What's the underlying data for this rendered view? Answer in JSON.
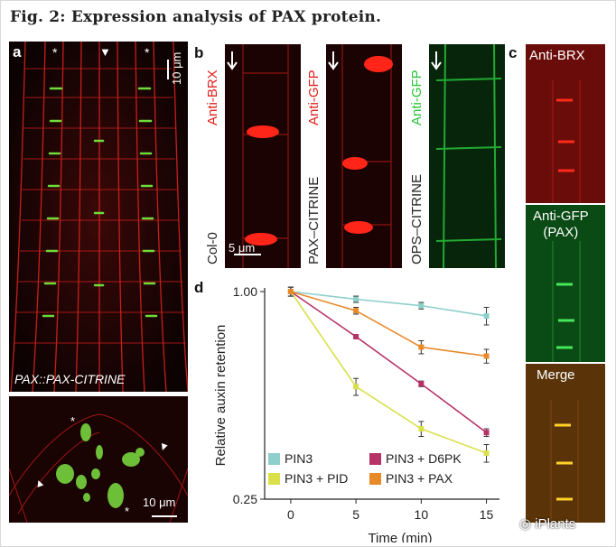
{
  "figure": {
    "title": "Fig. 2: Expression analysis of PAX protein."
  },
  "panel_a": {
    "label": "a",
    "top_scale": "10 μm",
    "caption": "PAX::PAX-CITRINE",
    "bottom_scale": "10 μm",
    "markers": [
      "*",
      "*",
      "*",
      "*"
    ]
  },
  "panel_b": {
    "label": "b",
    "cols": [
      {
        "stain": "Anti-BRX",
        "line": "Col-0",
        "stain_color": "#e0201c"
      },
      {
        "stain": "Anti-GFP",
        "line": "PAX–CITRINE",
        "stain_color": "#e0201c"
      },
      {
        "stain": "Anti-GFP",
        "line": "OPS–CITRINE",
        "stain_color": "#28c43a"
      }
    ],
    "scale": "5 μm"
  },
  "panel_c": {
    "label": "c",
    "rows": [
      {
        "label": "Anti-BRX"
      },
      {
        "label": "Anti-GFP\n(PAX)"
      },
      {
        "label": "Merge"
      }
    ]
  },
  "panel_d": {
    "label": "d"
  },
  "chart_data": {
    "type": "line",
    "xlabel": "Time (min)",
    "ylabel": "Relative auxin retention",
    "yscale": "log",
    "x": [
      0,
      5,
      10,
      15
    ],
    "xlim": [
      -2,
      16
    ],
    "ylim": [
      0.25,
      1.0
    ],
    "yticks": [
      1.0,
      0.25
    ],
    "ytick_labels": [
      "1.00",
      "0.25"
    ],
    "xticks": [
      0,
      5,
      10,
      15
    ],
    "legend_placement": "bottom",
    "series": [
      {
        "name": "PIN3",
        "color": "#8ecfcb",
        "values": [
          1.0,
          0.95,
          0.91,
          0.85
        ],
        "err": [
          0.03,
          0.02,
          0.02,
          0.05
        ]
      },
      {
        "name": "PIN3 + D6PK",
        "color": "#b8326a",
        "values": [
          1.0,
          0.74,
          0.54,
          0.39
        ],
        "err": [
          0.03,
          0.01,
          0.01,
          0.01
        ]
      },
      {
        "name": "PIN3 + PID",
        "color": "#d9e04a",
        "values": [
          1.0,
          0.53,
          0.4,
          0.34
        ],
        "err": [
          0.03,
          0.03,
          0.02,
          0.02
        ]
      },
      {
        "name": "PIN3 + PAX",
        "color": "#e98a2a",
        "values": [
          1.0,
          0.88,
          0.69,
          0.65
        ],
        "err": [
          0.03,
          0.02,
          0.03,
          0.03
        ]
      }
    ]
  },
  "watermark": {
    "text": "iPlants"
  }
}
